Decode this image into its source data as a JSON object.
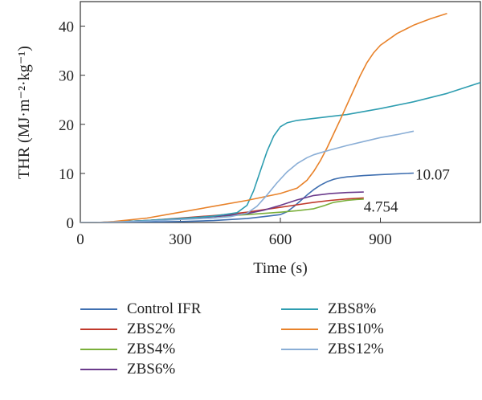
{
  "chart_data": {
    "type": "line",
    "title": "",
    "xlabel": "Time (s)",
    "ylabel": "THR (MJ·m⁻²·kg⁻¹)",
    "xlim": [
      0,
      1200
    ],
    "ylim": [
      0,
      45
    ],
    "xticks": [
      "0",
      "300",
      "600",
      "900"
    ],
    "xtick_values": [
      0,
      300,
      600,
      900
    ],
    "yticks": [
      "0",
      "10",
      "20",
      "30",
      "40"
    ],
    "ytick_values": [
      0,
      10,
      20,
      30,
      40
    ],
    "grid": false,
    "legend_position": "bottom",
    "series": [
      {
        "name": "Control IFR",
        "color": "#3f6fb0",
        "x": [
          0,
          50,
          100,
          200,
          300,
          400,
          500,
          550,
          600,
          620,
          640,
          660,
          680,
          700,
          720,
          740,
          760,
          780,
          800,
          850,
          900,
          950,
          1000
        ],
        "y": [
          0,
          0,
          0,
          0.1,
          0.2,
          0.4,
          0.8,
          1.2,
          1.6,
          2.2,
          3.2,
          4.4,
          5.6,
          6.7,
          7.6,
          8.3,
          8.8,
          9.1,
          9.3,
          9.55,
          9.75,
          9.92,
          10.07
        ]
      },
      {
        "name": "ZBS2%",
        "color": "#c0392b",
        "x": [
          0,
          50,
          100,
          200,
          300,
          400,
          450,
          500,
          550,
          600,
          650,
          700,
          750,
          800,
          850
        ],
        "y": [
          0,
          0,
          0.1,
          0.4,
          0.9,
          1.4,
          1.7,
          2.1,
          2.6,
          3.1,
          3.6,
          4.1,
          4.5,
          4.8,
          5.0
        ]
      },
      {
        "name": "ZBS4%",
        "color": "#7aaf3a",
        "x": [
          0,
          50,
          100,
          200,
          300,
          400,
          500,
          600,
          650,
          700,
          730,
          760,
          800,
          830,
          850
        ],
        "y": [
          0,
          0,
          0.1,
          0.4,
          0.8,
          1.2,
          1.6,
          2.1,
          2.4,
          2.8,
          3.4,
          4.1,
          4.5,
          4.7,
          4.754
        ]
      },
      {
        "name": "ZBS6%",
        "color": "#6b3b8c",
        "x": [
          0,
          50,
          100,
          200,
          300,
          400,
          500,
          550,
          600,
          650,
          700,
          750,
          800,
          850
        ],
        "y": [
          0,
          0,
          0.1,
          0.4,
          0.8,
          1.2,
          1.8,
          2.5,
          3.5,
          4.6,
          5.5,
          5.9,
          6.1,
          6.2
        ]
      },
      {
        "name": "ZBS8%",
        "color": "#2e9db0",
        "x": [
          0,
          50,
          100,
          200,
          300,
          400,
          470,
          500,
          520,
          540,
          560,
          580,
          600,
          620,
          650,
          700,
          800,
          900,
          1000,
          1100,
          1200
        ],
        "y": [
          0,
          0,
          0.1,
          0.4,
          0.8,
          1.3,
          2.0,
          3.5,
          6.5,
          10.5,
          14.5,
          17.6,
          19.5,
          20.3,
          20.8,
          21.2,
          22.0,
          23.2,
          24.6,
          26.3,
          28.5
        ]
      },
      {
        "name": "ZBS10%",
        "color": "#e8822a",
        "x": [
          0,
          50,
          100,
          200,
          300,
          400,
          500,
          600,
          650,
          680,
          700,
          720,
          740,
          760,
          780,
          800,
          820,
          840,
          860,
          880,
          900,
          950,
          1000,
          1050,
          1100
        ],
        "y": [
          0,
          0,
          0.2,
          0.9,
          2.1,
          3.3,
          4.5,
          5.9,
          7.0,
          8.6,
          10.4,
          12.6,
          15.2,
          18.1,
          21.0,
          24.0,
          27.0,
          30.0,
          32.6,
          34.6,
          36.1,
          38.5,
          40.2,
          41.5,
          42.6
        ]
      },
      {
        "name": "ZBS12%",
        "color": "#8aaed6",
        "x": [
          0,
          50,
          100,
          200,
          300,
          400,
          450,
          500,
          530,
          560,
          590,
          620,
          650,
          680,
          700,
          720,
          750,
          800,
          850,
          900,
          950,
          1000
        ],
        "y": [
          0,
          0,
          0.1,
          0.3,
          0.6,
          0.9,
          1.2,
          1.9,
          3.3,
          5.6,
          8.1,
          10.3,
          12.0,
          13.2,
          13.8,
          14.2,
          14.8,
          15.7,
          16.5,
          17.3,
          17.9,
          18.6
        ]
      }
    ],
    "annotations": [
      {
        "text": "10.07",
        "x": 1005,
        "y": 9.7
      },
      {
        "text": "4.754",
        "x": 850,
        "y": 3.2
      }
    ]
  }
}
